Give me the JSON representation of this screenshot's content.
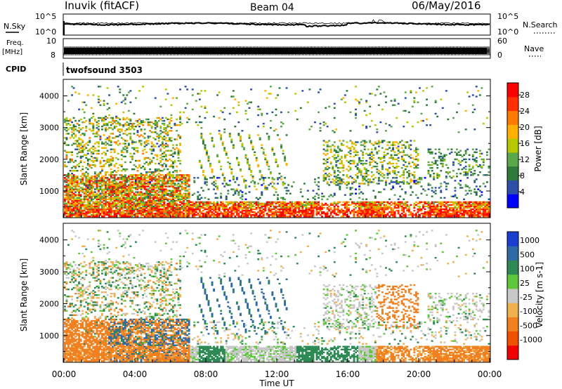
{
  "header": {
    "radar": "Inuvik (fitACF)",
    "beam": "Beam 04",
    "date": "06/May/2016"
  },
  "strips": {
    "nsky_label": "N.Sky",
    "nsky_ticks": [
      "10^5",
      "10^0"
    ],
    "nsearch_label": "N.Search",
    "nsearch_ticks": [
      "10^5",
      "10^0"
    ],
    "freq_label_1": "Freq.",
    "freq_label_2": "[MHz]",
    "freq_ticks": [
      "10",
      "8"
    ],
    "nave_label": "Nave",
    "nave_ticks": [
      "60",
      "0"
    ],
    "cpid_label": "CPID",
    "cpid_value": "twofsound 3503"
  },
  "chart_data": [
    {
      "type": "heatmap",
      "name": "power",
      "ylabel": "Slant Range [km]",
      "xlabel": "",
      "ylim": [
        180,
        4500
      ],
      "xlim_hours": [
        0,
        24
      ],
      "yticks": [
        "1000",
        "2000",
        "3000",
        "4000"
      ],
      "colorbar_label": "Power [dB]",
      "colorbar_ticks": [
        "4",
        "8",
        "12",
        "16",
        "20",
        "24",
        "28"
      ],
      "colorbar_range": [
        0,
        31
      ],
      "colormap": [
        "#0000ff",
        "#2d4fa8",
        "#2d7a3a",
        "#5aa84a",
        "#b8c800",
        "#ffb000",
        "#ff7a00",
        "#ff3000",
        "#ff0000"
      ]
    },
    {
      "type": "heatmap",
      "name": "velocity",
      "ylabel": "Slant Range [km]",
      "xlabel": "Time UT",
      "ylim": [
        180,
        4500
      ],
      "xlim_hours": [
        0,
        24
      ],
      "yticks": [
        "1000",
        "2000",
        "3000",
        "4000"
      ],
      "xticks": [
        "00:00",
        "04:00",
        "08:00",
        "12:00",
        "16:00",
        "20:00",
        "00:00"
      ],
      "colorbar_label": "Velocity [m s-1]",
      "colorbar_ticks": [
        "1000",
        "500",
        "100",
        "25",
        "-25",
        "-100",
        "-500",
        "-1000"
      ],
      "colormap": [
        "#1a3fd0",
        "#2e6aa6",
        "#2e8a55",
        "#5cc83a",
        "#c8c8c8",
        "#f0b050",
        "#f08020",
        "#f05000",
        "#f00000"
      ]
    }
  ],
  "colors": {
    "axis": "#000000",
    "background": "#ffffff"
  }
}
